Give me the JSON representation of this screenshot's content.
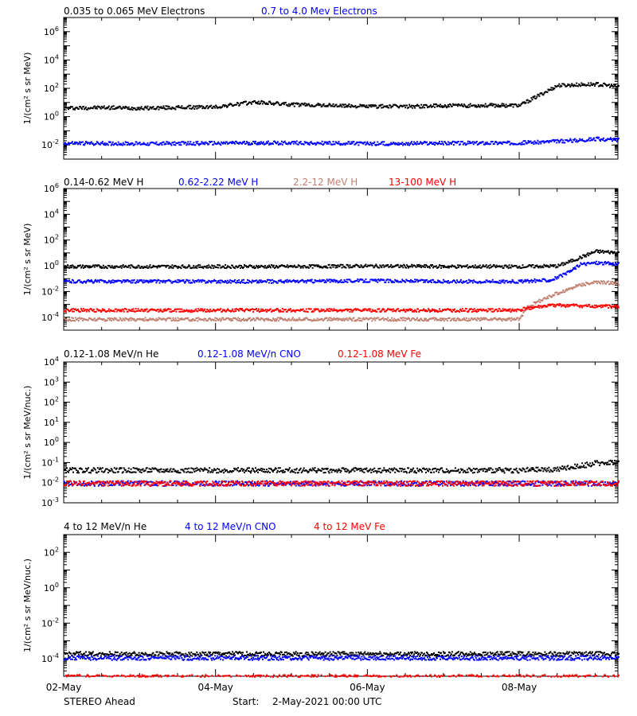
{
  "x_axis": {
    "ticks": [
      "02-May",
      "04-May",
      "06-May",
      "08-May"
    ],
    "range_days": [
      0,
      7.3
    ]
  },
  "footer": {
    "spacecraft": "STEREO Ahead",
    "start_label": "Start:",
    "start_value": "2-May-2021 00:00 UTC"
  },
  "chart_data": [
    {
      "type": "scatter",
      "log_y": true,
      "ylabel": "1/(cm² s sr MeV)",
      "ylim": [
        0.001,
        10000000
      ],
      "yticks": [
        {
          "v": 0.01,
          "base": "10",
          "exp": "-2"
        },
        {
          "v": 1,
          "base": "10",
          "exp": "0"
        },
        {
          "v": 100,
          "base": "10",
          "exp": "2"
        },
        {
          "v": 10000,
          "base": "10",
          "exp": "4"
        },
        {
          "v": 1000000,
          "base": "10",
          "exp": "6"
        }
      ],
      "series": [
        {
          "name": "0.035 to 0.065 MeV Electrons",
          "color": "#000000",
          "x": [
            0,
            0.5,
            1.0,
            1.5,
            2.0,
            2.5,
            3.0,
            3.5,
            4.0,
            4.5,
            5.0,
            5.5,
            6.0,
            6.5,
            7.0,
            7.3
          ],
          "y": [
            4.5,
            5,
            4.5,
            5,
            5.5,
            12,
            8,
            7,
            6,
            6,
            6.5,
            7,
            7,
            180,
            220,
            150
          ]
        },
        {
          "name": "0.7 to 4.0 Mev Electrons",
          "color": "#0000ff",
          "x": [
            0,
            1.0,
            2.0,
            3.0,
            4.0,
            5.0,
            6.0,
            6.5,
            7.0,
            7.3
          ],
          "y": [
            0.015,
            0.014,
            0.015,
            0.016,
            0.014,
            0.015,
            0.016,
            0.02,
            0.03,
            0.025
          ]
        }
      ]
    },
    {
      "type": "scatter",
      "log_y": true,
      "ylabel": "1/(cm² s sr MeV)",
      "ylim": [
        1e-05,
        1000000
      ],
      "yticks": [
        {
          "v": 0.0001,
          "base": "10",
          "exp": "-4"
        },
        {
          "v": 0.01,
          "base": "10",
          "exp": "-2"
        },
        {
          "v": 1,
          "base": "10",
          "exp": "0"
        },
        {
          "v": 100,
          "base": "10",
          "exp": "2"
        },
        {
          "v": 10000,
          "base": "10",
          "exp": "4"
        },
        {
          "v": 1000000,
          "base": "10",
          "exp": "6"
        }
      ],
      "series": [
        {
          "name": "0.14-0.62 MeV H",
          "color": "#000000",
          "x": [
            0,
            1.0,
            2.0,
            3.0,
            4.0,
            5.0,
            6.0,
            6.5,
            6.7,
            7.0,
            7.3
          ],
          "y": [
            1.0,
            1.0,
            1.0,
            1.0,
            1.1,
            1.0,
            1.0,
            1.1,
            3,
            15,
            12
          ]
        },
        {
          "name": "0.62-2.22 MeV H",
          "color": "#0000ff",
          "x": [
            0,
            1.0,
            2.0,
            3.0,
            4.0,
            5.0,
            6.0,
            6.4,
            6.6,
            6.8,
            7.0,
            7.3
          ],
          "y": [
            0.07,
            0.07,
            0.07,
            0.07,
            0.08,
            0.07,
            0.07,
            0.09,
            0.25,
            1.5,
            2,
            1.6
          ]
        },
        {
          "name": "2.2-12 MeV H",
          "color": "#c08070",
          "x": [
            0,
            1.0,
            2.0,
            3.0,
            4.0,
            5.0,
            6.0,
            6.1,
            6.4,
            6.8,
            7.0,
            7.3
          ],
          "y": [
            8e-05,
            8e-05,
            8e-05,
            8e-05,
            8e-05,
            8e-05,
            8e-05,
            0.0008,
            0.005,
            0.04,
            0.06,
            0.05
          ]
        },
        {
          "name": "13-100 MeV H",
          "color": "#ff0000",
          "x": [
            0,
            1.0,
            2.0,
            3.0,
            4.0,
            5.0,
            6.0,
            6.1,
            6.5,
            7.0,
            7.3
          ],
          "y": [
            0.0004,
            0.0004,
            0.0004,
            0.0004,
            0.0004,
            0.0004,
            0.0004,
            0.0006,
            0.001,
            0.0008,
            0.0008
          ]
        }
      ]
    },
    {
      "type": "scatter",
      "log_y": true,
      "ylabel": "1/(cm² s sr MeV/nuc.)",
      "ylim": [
        0.001,
        10000
      ],
      "yticks": [
        {
          "v": 0.001,
          "base": "10",
          "exp": "-3"
        },
        {
          "v": 0.01,
          "base": "10",
          "exp": "-2"
        },
        {
          "v": 0.1,
          "base": "10",
          "exp": "-1"
        },
        {
          "v": 1,
          "base": "10",
          "exp": "0"
        },
        {
          "v": 10,
          "base": "10",
          "exp": "1"
        },
        {
          "v": 100,
          "base": "10",
          "exp": "2"
        },
        {
          "v": 1000,
          "base": "10",
          "exp": "3"
        },
        {
          "v": 10000,
          "base": "10",
          "exp": "4"
        }
      ],
      "series": [
        {
          "name": "0.12-1.08 MeV/n He",
          "color": "#000000",
          "x": [
            0,
            1.0,
            2.0,
            3.0,
            4.0,
            5.0,
            6.0,
            6.5,
            7.0,
            7.3
          ],
          "y": [
            0.045,
            0.045,
            0.045,
            0.045,
            0.045,
            0.045,
            0.045,
            0.05,
            0.1,
            0.12
          ]
        },
        {
          "name": "0.12-1.08 MeV/n CNO",
          "color": "#0000ff",
          "x": [
            0,
            1.0,
            2.0,
            3.0,
            4.0,
            5.0,
            6.0,
            7.0,
            7.3
          ],
          "y": [
            0.01,
            0.01,
            0.01,
            0.01,
            0.01,
            0.01,
            0.01,
            0.01,
            0.01
          ]
        },
        {
          "name": "0.12-1.08 MeV Fe",
          "color": "#ff0000",
          "x": [
            0,
            1.0,
            2.0,
            3.0,
            4.0,
            5.0,
            6.0,
            7.0,
            7.3
          ],
          "y": [
            0.01,
            0.01,
            0.01,
            0.01,
            0.01,
            0.01,
            0.01,
            0.01,
            0.01
          ]
        }
      ]
    },
    {
      "type": "scatter",
      "log_y": true,
      "ylabel": "1/(cm² s sr MeV/nuc.)",
      "ylim": [
        1e-05,
        1000
      ],
      "yticks": [
        {
          "v": 0.0001,
          "base": "10",
          "exp": "-4"
        },
        {
          "v": 0.01,
          "base": "10",
          "exp": "-2"
        },
        {
          "v": 1,
          "base": "10",
          "exp": "0"
        },
        {
          "v": 100,
          "base": "10",
          "exp": "2"
        }
      ],
      "series": [
        {
          "name": "4 to 12 MeV/n He",
          "color": "#000000",
          "x": [
            0,
            1.0,
            2.0,
            3.0,
            4.0,
            5.0,
            6.0,
            7.0,
            7.3
          ],
          "y": [
            0.0002,
            0.0002,
            0.0002,
            0.0002,
            0.0002,
            0.0002,
            0.0002,
            0.0002,
            0.0002
          ]
        },
        {
          "name": "4 to 12 MeV/n CNO",
          "color": "#0000ff",
          "x": [
            0,
            1.0,
            2.0,
            3.0,
            4.0,
            5.0,
            6.0,
            7.0,
            7.3
          ],
          "y": [
            0.00012,
            0.00012,
            0.00012,
            0.00012,
            0.00012,
            0.00012,
            0.00012,
            0.00012,
            0.00012
          ]
        },
        {
          "name": "4 to 12 MeV Fe",
          "color": "#ff0000",
          "x": [
            0,
            1.0,
            2.0,
            3.0,
            4.0,
            5.0,
            6.0,
            7.0,
            7.3
          ],
          "y": [
            1e-05,
            1e-05,
            1e-05,
            1e-05,
            1e-05,
            1e-05,
            1e-05,
            1e-05,
            1e-05
          ]
        }
      ]
    }
  ]
}
